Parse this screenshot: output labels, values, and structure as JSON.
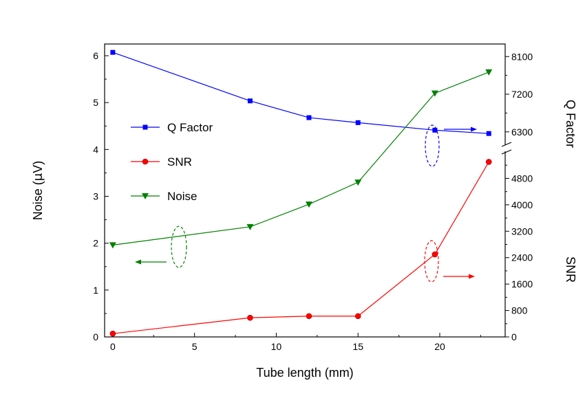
{
  "chart_data": {
    "type": "line",
    "xlabel": "Tube length (mm)",
    "xlim": [
      -0.5,
      24
    ],
    "x_ticks": [
      0,
      5,
      10,
      15,
      20
    ],
    "x_tick_labels": [
      "0",
      "5",
      "10",
      "15",
      "20"
    ],
    "axes": {
      "left": {
        "label_parts": [
          "Noise (",
          "μ",
          "V)"
        ],
        "ylim": [
          0,
          6.25
        ],
        "ticks": [
          0,
          1,
          2,
          3,
          4,
          5,
          6
        ],
        "tick_labels": [
          "0",
          "1",
          "2",
          "3",
          "4",
          "5",
          "6"
        ]
      },
      "right_upper": {
        "label": "Q Factor",
        "ylim": [
          6000,
          8400
        ],
        "ticks": [
          6300,
          7200,
          8100
        ],
        "tick_labels": [
          "6300",
          "7200",
          "8100"
        ]
      },
      "right_lower": {
        "label": "SNR",
        "ylim": [
          0,
          5600
        ],
        "ticks": [
          0,
          800,
          1600,
          2400,
          3200,
          4000,
          4800
        ],
        "tick_labels": [
          "0",
          "800",
          "1600",
          "2400",
          "3200",
          "4000",
          "4800"
        ]
      }
    },
    "series": [
      {
        "name": "Q Factor",
        "axis": "right_upper",
        "color": "#0000ff",
        "marker": "square",
        "x": [
          0,
          8.4,
          12,
          15,
          19.7,
          23
        ],
        "y": [
          8200,
          7040,
          6640,
          6520,
          6340,
          6260
        ]
      },
      {
        "name": "SNR",
        "axis": "right_lower",
        "color": "#ff0000",
        "marker": "circle",
        "x": [
          0,
          8.4,
          12,
          15,
          19.7,
          23
        ],
        "y": [
          100,
          580,
          630,
          630,
          2500,
          5300
        ]
      },
      {
        "name": "Noise",
        "axis": "left",
        "color": "#008000",
        "marker": "triangle-down",
        "x": [
          0,
          8.4,
          12,
          15,
          19.7,
          23
        ],
        "y": [
          1.96,
          2.35,
          2.83,
          3.3,
          5.2,
          5.65
        ]
      }
    ],
    "legend": {
      "position": "upper-left"
    },
    "grid": false
  }
}
